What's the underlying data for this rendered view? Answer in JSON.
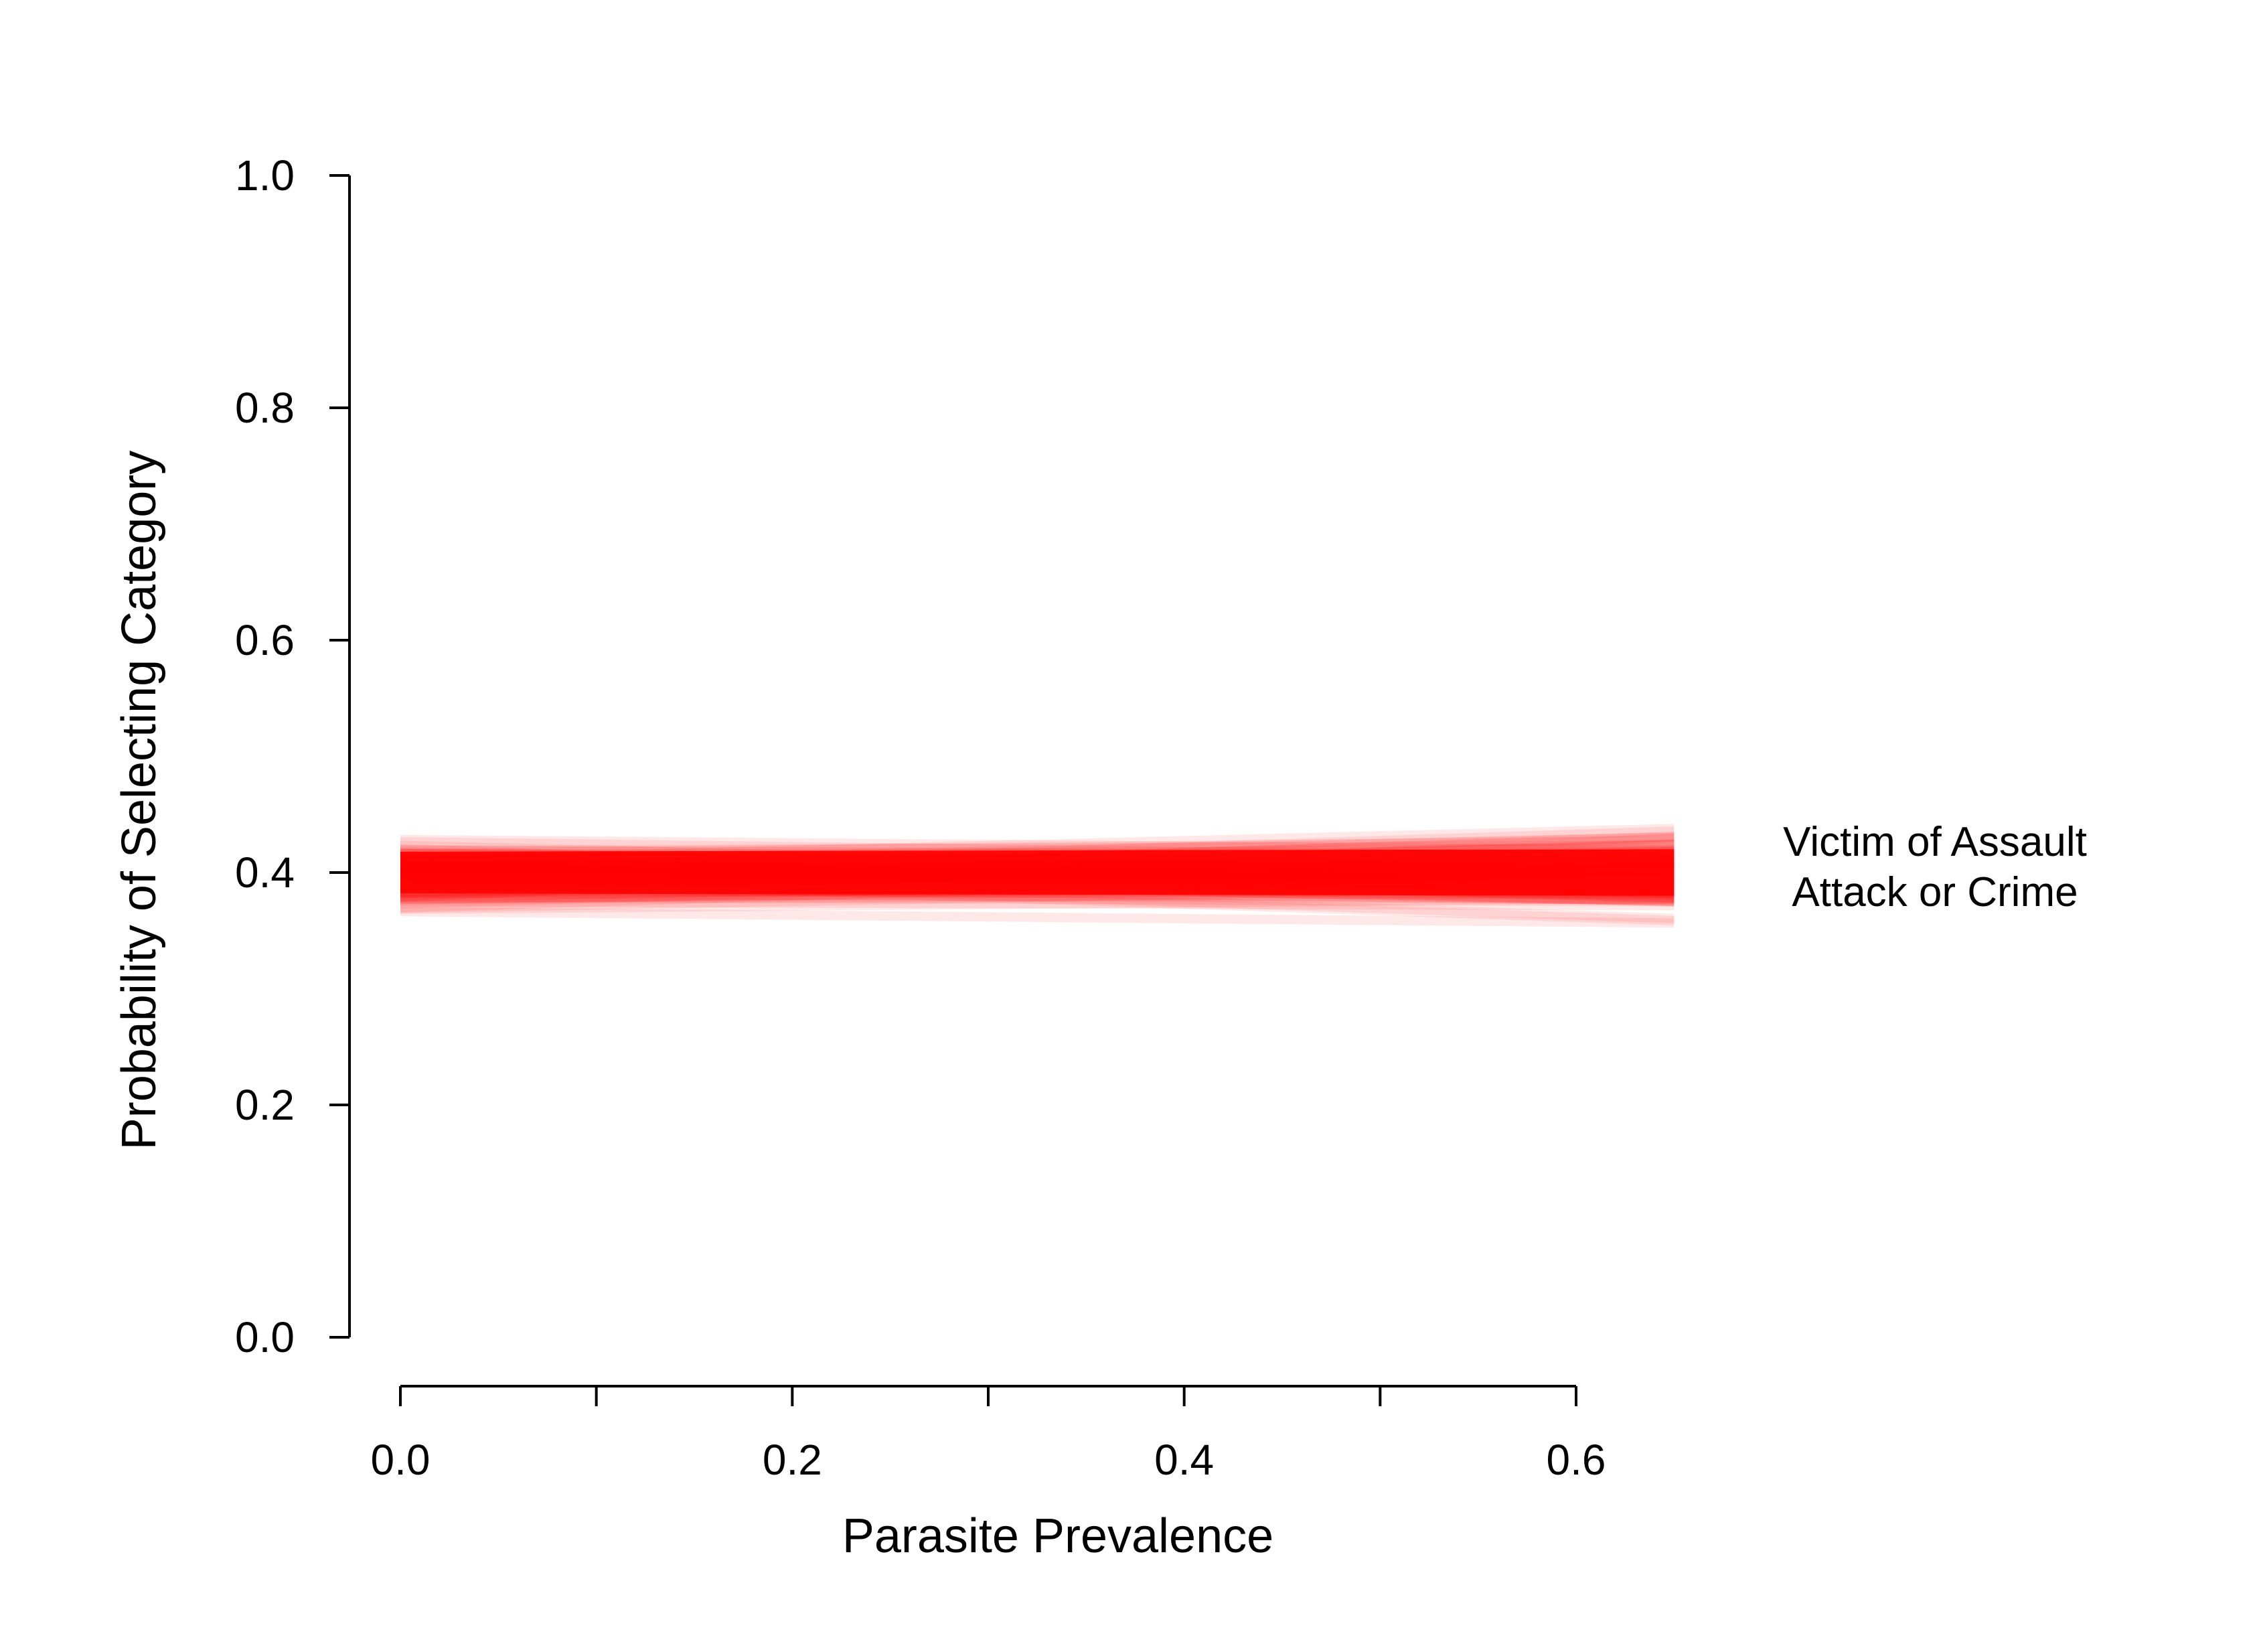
{
  "chart_data": {
    "type": "line",
    "title": "",
    "xlabel": "Parasite Prevalence",
    "ylabel": "Probability of Selecting Category",
    "xlim": [
      0.0,
      0.6
    ],
    "ylim": [
      0.0,
      1.0
    ],
    "x_ticks": [
      0.0,
      0.1,
      0.2,
      0.3,
      0.4,
      0.5,
      0.6
    ],
    "x_tick_labels": [
      "0.0",
      "",
      "0.2",
      "",
      "0.4",
      "",
      "0.6"
    ],
    "y_ticks": [
      0.0,
      0.2,
      0.4,
      0.6,
      0.8,
      1.0
    ],
    "y_tick_labels": [
      "0.0",
      "0.2",
      "0.4",
      "0.6",
      "0.8",
      "1.0"
    ],
    "grid": false,
    "legend": "none",
    "x_data_range": [
      0.0,
      0.65
    ],
    "series": [
      {
        "color": "#ff0000",
        "style": "band of posterior predictive lines",
        "x": [
          0.0,
          0.65
        ],
        "mean": [
          0.4,
          0.4
        ],
        "upper": [
          0.435,
          0.447
        ],
        "lower": [
          0.36,
          0.35
        ]
      }
    ],
    "annotations": [
      "Victim of Assault",
      "Attack or Crime"
    ]
  }
}
